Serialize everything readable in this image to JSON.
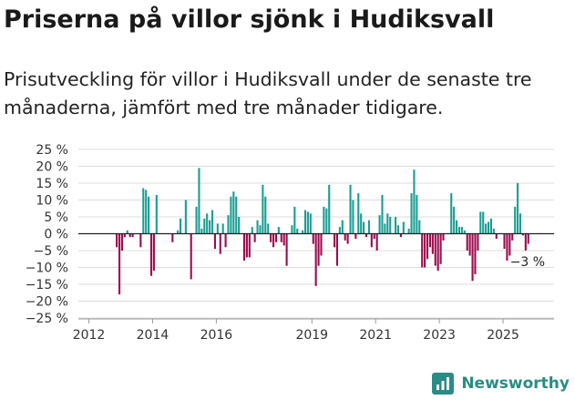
{
  "header": {
    "title": "Priserna på villor sjönk i Hudiksvall",
    "subtitle": "Prisutveckling för villor i Hudiksvall under de senaste tre månaderna, jämfört med tre månader tidigare."
  },
  "brand": {
    "name": "Newsworthy",
    "icon": "newsworthy-logo-icon",
    "color": "#2a8c86"
  },
  "chart_data": {
    "type": "bar",
    "title": "Priserna på villor sjönk i Hudiksvall",
    "xlabel": "",
    "ylabel": "",
    "ylim": [
      -25,
      25
    ],
    "ytick_values": [
      25,
      20,
      15,
      10,
      5,
      0,
      -5,
      -10,
      -15,
      -20,
      -25
    ],
    "ytick_labels": [
      "25 %",
      "20 %",
      "15 %",
      "10 %",
      "5 %",
      "0 %",
      "−5 %",
      "−10 %",
      "−15 %",
      "−20 %",
      "−25 %"
    ],
    "xtick_labels": [
      "2012",
      "2014",
      "2016",
      "2019",
      "2021",
      "2023",
      "2025"
    ],
    "grid": true,
    "colors": {
      "positive": "#1a9e93",
      "negative": "#9c0c4e",
      "zero_line": "#222222",
      "grid": "#dcdcdc"
    },
    "annotation": {
      "text": "−3 %",
      "value": -3
    },
    "start": "2012-11",
    "interval": "month",
    "values": [
      -4,
      -18,
      -5,
      -1,
      1,
      -1,
      -1,
      0,
      0,
      -4,
      13.5,
      13,
      11,
      -12.5,
      -11,
      11.5,
      0,
      0,
      0,
      0,
      0,
      -2.5,
      0,
      1,
      4.5,
      0,
      10,
      0,
      -13.5,
      0,
      8,
      19.5,
      1.5,
      4.5,
      6,
      4,
      7,
      -4.5,
      3,
      -6,
      3,
      -4,
      5.5,
      11,
      12.5,
      11,
      5,
      0,
      -8,
      -7,
      -7,
      2,
      -2.5,
      4,
      2.5,
      14.5,
      11,
      3,
      -2.5,
      -4,
      -2.5,
      2,
      -2.5,
      -3.5,
      -9.5,
      0,
      2.5,
      8,
      1.5,
      0,
      1,
      7,
      6.5,
      6,
      -3,
      -15.5,
      -9.5,
      -6.5,
      8,
      7.5,
      14.5,
      0,
      -4,
      -9.5,
      2,
      4,
      -2,
      -3,
      14.5,
      10,
      -1.5,
      12,
      6,
      3.5,
      -1,
      4,
      -4,
      -1.5,
      -5,
      5.5,
      11.5,
      3,
      6,
      5,
      0,
      5,
      2.5,
      -1,
      3.5,
      0,
      1.5,
      12,
      19,
      11.5,
      4,
      -10,
      -10,
      -7.5,
      -4,
      -6,
      -9.5,
      -11,
      -9,
      -2,
      0,
      0,
      12,
      8,
      4,
      2,
      2,
      1,
      -5,
      -6.5,
      -14,
      -12,
      -5,
      6.5,
      6.5,
      3,
      3.5,
      4.5,
      1.5,
      -1.5,
      0,
      0,
      -4.5,
      -8,
      -6.5,
      -2,
      8,
      15,
      6,
      -0.5,
      -5,
      -3
    ]
  }
}
